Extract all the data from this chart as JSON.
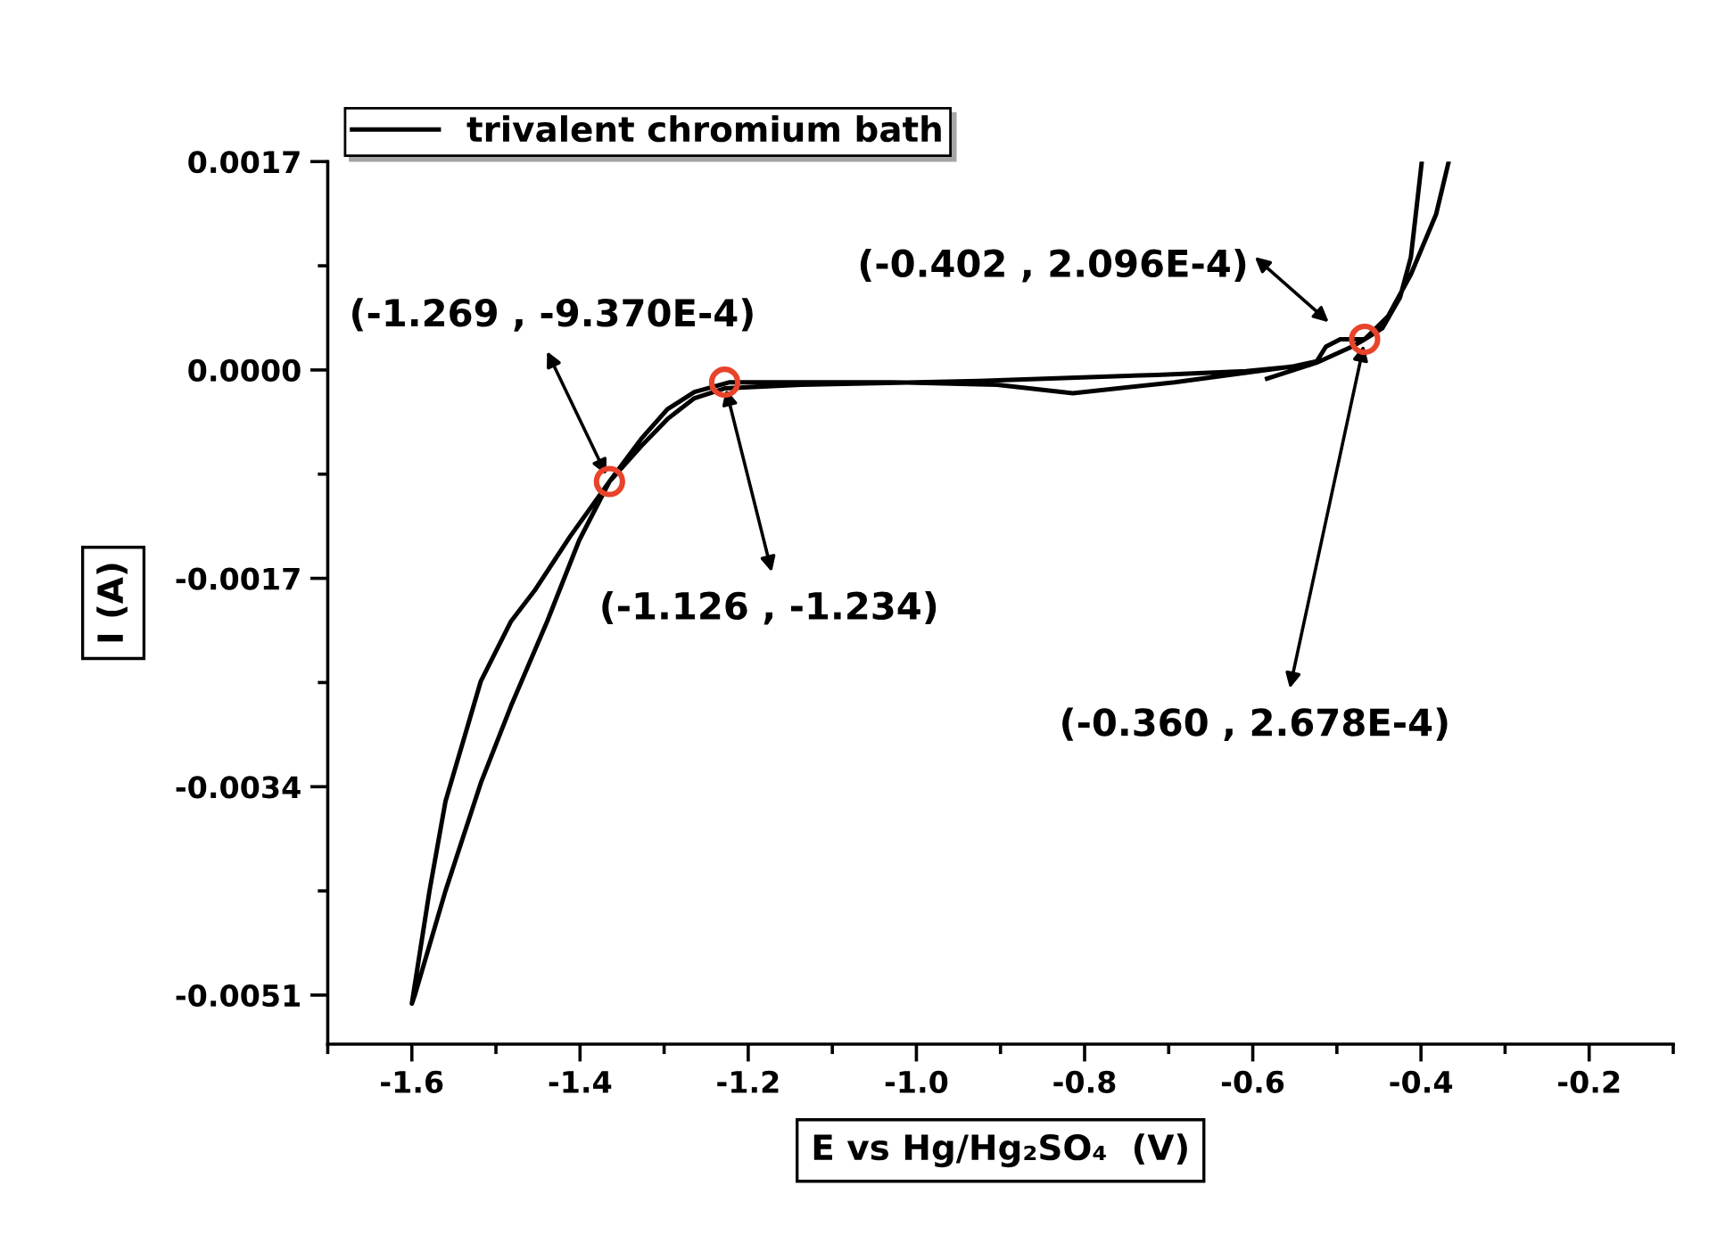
{
  "chart_data": {
    "type": "line",
    "xlabel": "E vs Hg/Hg₂SO₄  (V)",
    "ylabel": "I (A)",
    "xlim": [
      -1.7,
      -0.1
    ],
    "xticks": [
      -1.6,
      -1.4,
      -1.2,
      {
        "value": -1.0,
        "label": "-1.0"
      },
      -0.8,
      -0.6,
      -0.4,
      -0.2
    ],
    "ylim": [
      -0.0055,
      0.0017
    ],
    "yticks": [
      {
        "value": 0.0017,
        "label": "0.0017"
      },
      {
        "value": 0,
        "label": "0.0000"
      },
      {
        "value": -0.0017,
        "label": "-0.0017"
      },
      {
        "value": -0.0034,
        "label": "-0.0034"
      },
      {
        "value": -0.0051,
        "label": "-0.0051"
      }
    ],
    "legend": "top left",
    "grid": false,
    "series": [
      {
        "name": "trivalent chromium bath",
        "color": "#000000",
        "x": [
          -0.583,
          -0.524,
          -0.482,
          -0.467,
          -0.439,
          -0.412,
          -0.382,
          -0.367,
          -0.383,
          -0.399,
          -0.412,
          -0.425,
          -0.446,
          -0.467,
          -0.496,
          -0.513,
          -0.524,
          -0.551,
          -0.693,
          -0.814,
          -0.904,
          -1.031,
          -1.222,
          -1.264,
          -1.296,
          -1.327,
          -1.365,
          -1.412,
          -1.454,
          -1.482,
          -1.518,
          -1.539,
          -1.56,
          -1.579,
          -1.6,
          -1.596,
          -1.56,
          -1.518,
          -1.482,
          -1.439,
          -1.401,
          -1.365,
          -1.327,
          -1.296,
          -1.264,
          -1.228,
          -1.137,
          -0.926,
          -0.714,
          -0.608,
          -0.534
        ],
        "values": [
          -7e-05,
          6e-05,
          0.00019,
          0.00025,
          0.00044,
          0.00078,
          0.00127,
          0.0017,
          null,
          0.0017,
          0.00092,
          0.00059,
          0.00034,
          0.00025,
          0.00025,
          0.00019,
          7e-05,
          3e-05,
          -0.0001,
          -0.00019,
          -0.00012,
          -0.0001,
          -0.0001,
          -0.00018,
          -0.00032,
          -0.00056,
          -0.00091,
          -0.00136,
          -0.0018,
          -0.00205,
          -0.00254,
          -0.00303,
          -0.00352,
          -0.00425,
          -0.00517,
          -0.00509,
          -0.00425,
          -0.00337,
          -0.00274,
          -0.00205,
          -0.00139,
          -0.00091,
          -0.00062,
          -0.0004,
          -0.00023,
          -0.00015,
          -0.00012,
          -9e-05,
          -4e-05,
          -1e-05,
          4e-05
        ]
      },
      {
        "type": "scatter",
        "color": "#e8432b",
        "marker": "circle",
        "x": [
          -1.365,
          -1.228,
          -0.467
        ],
        "values": [
          -0.00091,
          -0.0001,
          0.00025
        ]
      }
    ],
    "annotations": [
      "(-1.269 , -9.370E-4)",
      "(-1.126 , -1.234)",
      "(-0.402 , 2.096E-4)",
      "(-0.360 , 2.678E-4)"
    ]
  }
}
